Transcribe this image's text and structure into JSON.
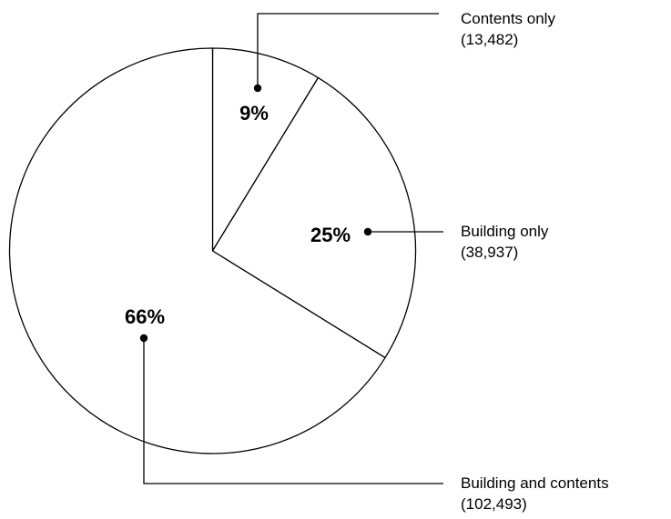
{
  "chart_data": {
    "type": "pie",
    "title": "",
    "slices": [
      {
        "label": "Contents only",
        "count": "(13,482)",
        "value": 13482,
        "percent_label": "9%"
      },
      {
        "label": "Building only",
        "count": "(38,937)",
        "value": 38937,
        "percent_label": "25%"
      },
      {
        "label": "Building and contents",
        "count": "(102,493)",
        "value": 102493,
        "percent_label": "66%"
      }
    ],
    "start": "12 o'clock",
    "direction": "clockwise",
    "fill": "#ffffff",
    "stroke": "#000000",
    "legend": "none (leader-line callouts to the right)"
  }
}
